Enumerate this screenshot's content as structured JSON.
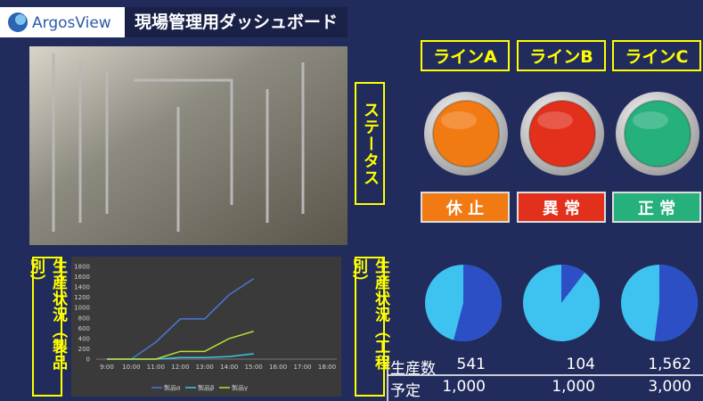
{
  "header": {
    "logo": "ArgosView",
    "title": "現場管理用ダッシュボード"
  },
  "status_label": "ステータス",
  "lines": [
    {
      "name": "ラインA",
      "status": "休 止",
      "color": "#f27a12"
    },
    {
      "name": "ラインB",
      "status": "異 常",
      "color": "#e2301c"
    },
    {
      "name": "ラインC",
      "status": "正 常",
      "color": "#25b07c"
    }
  ],
  "product_label": "生産状況（製品別）",
  "process_label": "生産状況（工程別）",
  "chart_data": {
    "type": "line",
    "categories": [
      "9:00",
      "10:00",
      "11:00",
      "12:00",
      "13:00",
      "14:00",
      "15:00",
      "16:00",
      "17:00",
      "18:00"
    ],
    "series": [
      {
        "name": "製品α",
        "color": "#4a78d8",
        "values": [
          0,
          0,
          330,
          780,
          780,
          1250,
          1562,
          null,
          null,
          null
        ]
      },
      {
        "name": "製品β",
        "color": "#3cc6e8",
        "values": [
          0,
          0,
          0,
          30,
          30,
          50,
          104,
          null,
          null,
          null
        ]
      },
      {
        "name": "製品γ",
        "color": "#b6e03a",
        "values": [
          0,
          0,
          0,
          150,
          150,
          400,
          541,
          null,
          null,
          null
        ]
      }
    ],
    "ylim": [
      0,
      1800
    ],
    "yticks": [
      0,
      200,
      400,
      600,
      800,
      1000,
      1200,
      1400,
      1600,
      1800
    ],
    "grid": false
  },
  "production": {
    "actual_label": "生産数",
    "plan_label": "予定",
    "actual": [
      {
        "value": 541,
        "label": "541"
      },
      {
        "value": 104,
        "label": "104"
      },
      {
        "value": 1562,
        "label": "1,562"
      }
    ],
    "plan": [
      {
        "value": 1000,
        "label": "1,000"
      },
      {
        "value": 1000,
        "label": "1,000"
      },
      {
        "value": 3000,
        "label": "3,000"
      }
    ],
    "done_color": "#2c4fc6",
    "rest_color": "#3ec2f0"
  }
}
